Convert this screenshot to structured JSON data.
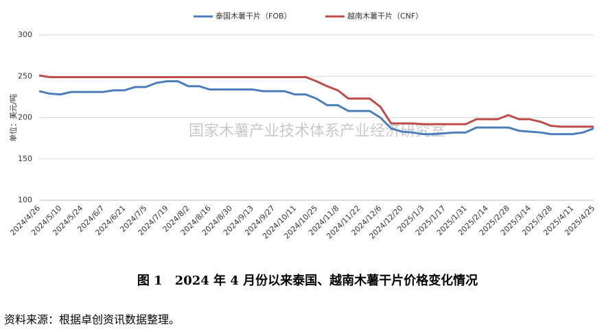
{
  "chart_data": {
    "type": "line",
    "y_label": "单位：美元/吨",
    "watermark": "国家木薯产业技术体系产业经济研究室",
    "categories": [
      "2024/4/26",
      null,
      "2024/5/10",
      null,
      "2024/5/24",
      null,
      "2024/6/7",
      null,
      "2024/6/21",
      null,
      "2024/7/5",
      null,
      "2024/7/19",
      null,
      "2024/8/2",
      null,
      "2024/8/16",
      null,
      "2024/8/30",
      null,
      "2024/9/13",
      null,
      "2024/9/27",
      null,
      "2024/10/11",
      null,
      "2024/10/25",
      null,
      "2024/11/8",
      null,
      "2024/11/22",
      null,
      "2024/12/6",
      null,
      "2024/12/20",
      null,
      "2025/1/3",
      null,
      "2025/1/17",
      null,
      "2025/1/31",
      null,
      "2025/2/14",
      null,
      "2025/2/28",
      null,
      "2025/3/14",
      null,
      "2025/3/28",
      null,
      "2025/4/11",
      null,
      "2025/4/25"
    ],
    "series": [
      {
        "name": "泰国木薯干片（FOB）",
        "color": "#4a7ebb",
        "values": [
          232,
          229,
          228,
          231,
          231,
          231,
          231,
          233,
          233,
          237,
          237,
          242,
          244,
          244,
          238,
          238,
          234,
          234,
          234,
          234,
          234,
          232,
          232,
          232,
          228,
          228,
          223,
          215,
          215,
          208,
          208,
          208,
          200,
          187,
          183,
          182,
          180,
          180,
          181,
          182,
          182,
          188,
          188,
          188,
          188,
          184,
          183,
          182,
          180,
          180,
          180,
          182,
          187
        ]
      },
      {
        "name": "越南木薯干片（CNF）",
        "color": "#be4b48",
        "values": [
          251,
          249,
          249,
          249,
          249,
          249,
          249,
          249,
          249,
          249,
          249,
          249,
          249,
          249,
          249,
          249,
          249,
          249,
          249,
          249,
          249,
          249,
          249,
          249,
          249,
          249,
          244,
          238,
          233,
          223,
          223,
          223,
          213,
          193,
          193,
          193,
          192,
          192,
          192,
          192,
          192,
          198,
          198,
          198,
          203,
          198,
          198,
          195,
          190,
          189,
          189,
          189,
          189
        ]
      }
    ],
    "ylim": [
      100,
      300
    ],
    "yticks": [
      100,
      150,
      200,
      250,
      300
    ],
    "grid": true
  },
  "caption": "图 1　2024 年 4 月份以来泰国、越南木薯干片价格变化情况",
  "source": "资料来源：根据卓创资讯数据整理。"
}
